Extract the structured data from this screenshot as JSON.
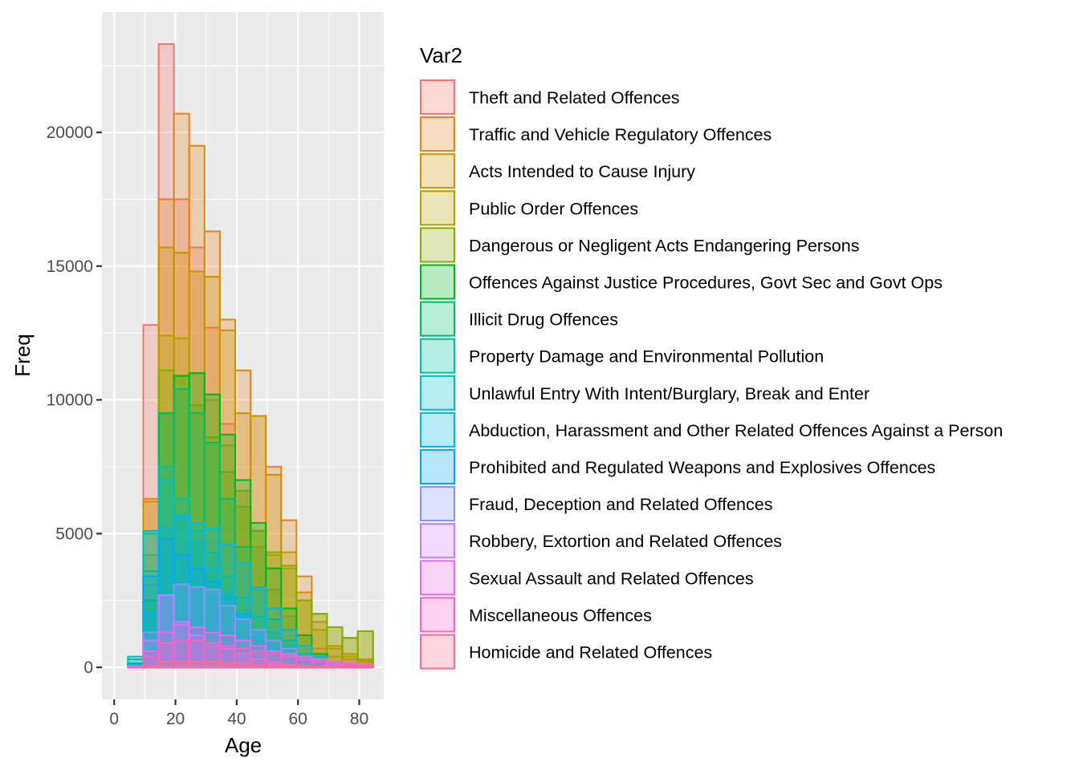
{
  "chart_data": {
    "type": "histogram",
    "position": "overlay",
    "title": "",
    "xlabel": "Age",
    "ylabel": "Freq",
    "xlim": [
      -4,
      88
    ],
    "ylim": [
      -1200,
      24500
    ],
    "x_ticks": [
      0,
      20,
      40,
      60,
      80
    ],
    "y_ticks": [
      0,
      5000,
      10000,
      15000,
      20000
    ],
    "x_tick_labels": [
      "0",
      "20",
      "40",
      "60",
      "80"
    ],
    "y_tick_labels": [
      "0",
      "5000",
      "10000",
      "15000",
      "20000"
    ],
    "bin_width": 5,
    "bin_starts": [
      0,
      5,
      10,
      15,
      20,
      25,
      30,
      35,
      40,
      45,
      50,
      55,
      60,
      65,
      70,
      75,
      80
    ],
    "grid": true,
    "legend": {
      "title": "Var2",
      "position": "right"
    },
    "series": [
      {
        "name": "Theft and Related Offences",
        "color": "#F8766D",
        "values": [
          0,
          150,
          12800,
          23300,
          17500,
          15700,
          12700,
          9100,
          6600,
          4500,
          2900,
          1900,
          1200,
          700,
          400,
          300,
          200
        ]
      },
      {
        "name": "Traffic and Vehicle Regulatory Offences",
        "color": "#E7851E",
        "values": [
          0,
          0,
          6300,
          17500,
          20700,
          19500,
          16300,
          13000,
          11100,
          9400,
          7500,
          5500,
          3400,
          1700,
          700,
          400,
          250
        ]
      },
      {
        "name": "Acts Intended to Cause Injury",
        "color": "#D09400",
        "values": [
          0,
          80,
          6200,
          15700,
          15500,
          14800,
          14600,
          12600,
          9500,
          9400,
          7200,
          4300,
          2800,
          1400,
          800,
          500,
          300
        ]
      },
      {
        "name": "Public Order Offences",
        "color": "#B2A100",
        "values": [
          0,
          50,
          4200,
          12400,
          12300,
          11000,
          10000,
          8300,
          6600,
          5100,
          4200,
          3700,
          2500,
          2000,
          1500,
          1100,
          1350
        ]
      },
      {
        "name": "Dangerous or Negligent Acts Endangering Persons",
        "color": "#89AC00",
        "values": [
          0,
          0,
          3100,
          11100,
          10900,
          9800,
          8600,
          7300,
          6000,
          5100,
          4300,
          3800,
          2500,
          2000,
          1500,
          1100,
          1350
        ]
      },
      {
        "name": "Offences Against Justice Procedures, Govt Sec and Govt Ops",
        "color": "#00B81F",
        "values": [
          0,
          100,
          2500,
          9500,
          10900,
          11000,
          10200,
          8700,
          7000,
          5400,
          3700,
          2200,
          1200,
          500,
          200,
          100,
          50
        ]
      },
      {
        "name": "Illicit Drug Offences",
        "color": "#00BE6C",
        "values": [
          0,
          150,
          3600,
          9500,
          10400,
          9500,
          8400,
          6300,
          4500,
          3000,
          1800,
          1000,
          500,
          200,
          100,
          50,
          30
        ]
      },
      {
        "name": "Property Damage and Environmental Pollution",
        "color": "#00C0A0",
        "values": [
          0,
          300,
          5000,
          7500,
          6300,
          5100,
          4300,
          3400,
          2600,
          1900,
          1300,
          800,
          500,
          300,
          150,
          80,
          50
        ]
      },
      {
        "name": "Unlawful Entry With Intent/Burglary, Break and Enter",
        "color": "#00BFC4",
        "values": [
          0,
          400,
          5100,
          7000,
          5600,
          4700,
          3700,
          2800,
          1900,
          1200,
          700,
          400,
          200,
          100,
          50,
          30,
          20
        ]
      },
      {
        "name": "Abduction, Harassment and Other Related Offences Against a Person",
        "color": "#00B8E7",
        "values": [
          0,
          50,
          2000,
          5200,
          5700,
          5400,
          5200,
          4600,
          3900,
          3000,
          2200,
          1400,
          800,
          400,
          200,
          100,
          50
        ]
      },
      {
        "name": "Prohibited and Regulated Weapons and Explosives Offences",
        "color": "#00A9FF",
        "values": [
          0,
          100,
          3400,
          4800,
          4200,
          3700,
          3200,
          2600,
          2000,
          1400,
          1000,
          700,
          400,
          200,
          100,
          60,
          40
        ]
      },
      {
        "name": "Fraud, Deception and Related Offences",
        "color": "#8494FF",
        "values": [
          0,
          50,
          1300,
          2700,
          3100,
          3000,
          2900,
          2300,
          1800,
          1400,
          1000,
          700,
          400,
          200,
          100,
          50,
          30
        ]
      },
      {
        "name": "Robbery, Extortion and Related Offences",
        "color": "#C77CFF",
        "values": [
          0,
          20,
          1000,
          2700,
          1700,
          1200,
          900,
          700,
          500,
          300,
          200,
          100,
          60,
          30,
          20,
          10,
          5
        ]
      },
      {
        "name": "Sexual Assault and Related Offences",
        "color": "#ED68ED",
        "values": [
          0,
          30,
          600,
          1300,
          1600,
          1500,
          1300,
          1200,
          1000,
          800,
          600,
          500,
          400,
          300,
          200,
          150,
          100
        ]
      },
      {
        "name": "Miscellaneous Offences",
        "color": "#FF61C3",
        "values": [
          0,
          20,
          400,
          900,
          1000,
          1000,
          900,
          800,
          700,
          600,
          500,
          400,
          300,
          200,
          150,
          100,
          80
        ]
      },
      {
        "name": "Homicide and Related Offences",
        "color": "#FF6C91",
        "values": [
          0,
          0,
          50,
          200,
          200,
          200,
          200,
          150,
          150,
          100,
          100,
          80,
          60,
          50,
          40,
          30,
          20
        ]
      }
    ]
  }
}
